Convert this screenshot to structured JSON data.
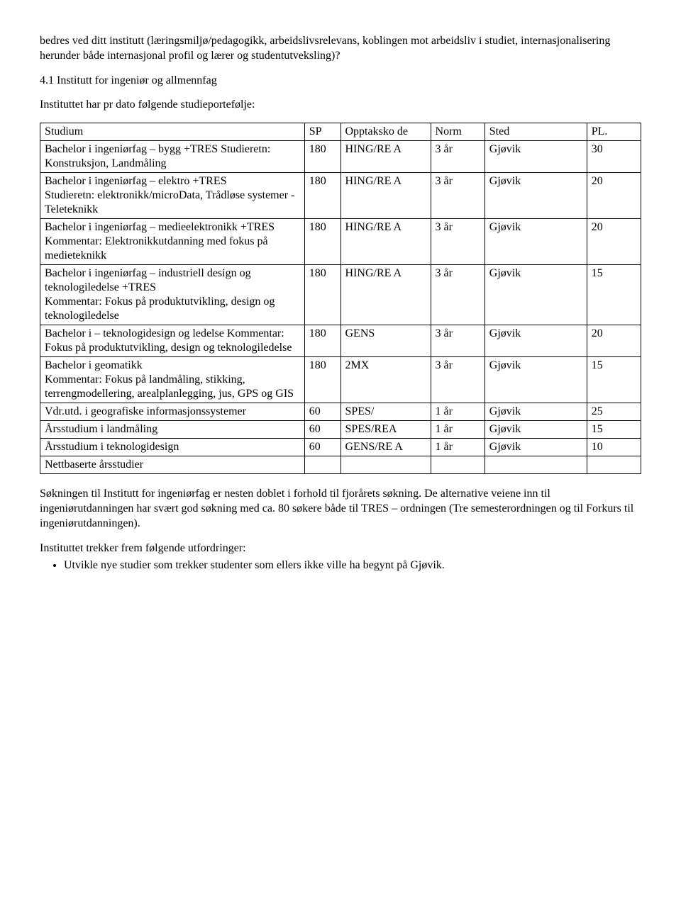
{
  "intro_paragraph": "bedres ved ditt institutt (læringsmiljø/pedagogikk, arbeidslivsrelevans, koblingen mot arbeidsliv i studiet, internasjonalisering herunder både internasjonal profil og lærer og studentutveksling)?",
  "section_heading": "4.1 Institutt for ingeniør og allmennfag",
  "portfolio_intro": "Instituttet har pr dato følgende studieportefølje:",
  "table": {
    "columns": [
      "Studium",
      "SP",
      "Opptaksko de",
      "Norm",
      "Sted",
      "PL."
    ],
    "column_classes": [
      "col-studium",
      "col-sp",
      "col-opptak",
      "col-norm",
      "col-sted",
      "col-pl"
    ],
    "rows": [
      [
        "Bachelor i ingeniørfag – bygg +TRES Studieretn: Konstruksjon, Landmåling",
        "180",
        "HING/RE A",
        "3 år",
        "Gjøvik",
        "30"
      ],
      [
        "Bachelor i ingeniørfag – elektro +TRES\nStudieretn: elektronikk/microData, Trådløse systemer - Teleteknikk",
        "180",
        "HING/RE A",
        "3 år",
        "Gjøvik",
        "20"
      ],
      [
        "Bachelor i ingeniørfag – medieelektronikk  +TRES Kommentar: Elektronikkutdanning med fokus på medieteknikk",
        "180",
        "HING/RE A",
        "3 år",
        "Gjøvik",
        "20"
      ],
      [
        "Bachelor i ingeniørfag – industriell design og teknologiledelse +TRES\n Kommentar: Fokus på produktutvikling, design og teknologiledelse",
        "180",
        "HING/RE A",
        "3 år",
        "Gjøvik",
        "15"
      ],
      [
        "Bachelor i – teknologidesign og ledelse   Kommentar: Fokus på produktutvikling, design og teknologiledelse",
        "180",
        "GENS",
        "3 år",
        "Gjøvik",
        "20"
      ],
      [
        "Bachelor i geomatikk\nKommentar: Fokus på landmåling, stikking, terrengmodellering, arealplanlegging, jus, GPS og GIS",
        "180",
        "2MX",
        "3 år",
        "Gjøvik",
        "15"
      ],
      [
        "Vdr.utd. i geografiske informasjonssystemer",
        "60",
        "SPES/",
        "1 år",
        "Gjøvik",
        "25"
      ],
      [
        "Årsstudium i landmåling",
        "60",
        "SPES/REA",
        "1 år",
        "Gjøvik",
        "15"
      ],
      [
        "Årsstudium i teknologidesign",
        "60",
        "GENS/RE A",
        "1 år",
        "Gjøvik",
        "10"
      ],
      [
        "Nettbaserte årsstudier",
        "",
        "",
        "",
        "",
        ""
      ]
    ]
  },
  "after_table_paragraph": "Søkningen til Institutt for ingeniørfag er nesten doblet i forhold til fjorårets søkning. De alternative veiene inn til ingeniørutdanningen har svært god søkning med ca. 80 søkere både til TRES – ordningen (Tre semesterordningen og til Forkurs til ingeniørutdanningen).",
  "challenges_intro": "Instituttet trekker frem følgende utfordringer:",
  "bullets": [
    "Utvikle nye studier som trekker studenter som ellers ikke ville ha begynt på Gjøvik."
  ]
}
